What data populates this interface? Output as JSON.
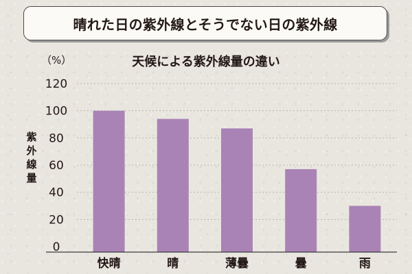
{
  "header": {
    "title": "晴れた日の紫外線とそうでない日の紫外線"
  },
  "chart_data": {
    "type": "bar",
    "title": "天候による紫外線量の違い",
    "xlabel": "",
    "ylabel": "紫外線量",
    "yunit": "（%）",
    "ylim": [
      0,
      120
    ],
    "yticks": [
      0,
      20,
      40,
      60,
      80,
      100,
      120
    ],
    "grid": true,
    "categories": [
      "快晴",
      "晴",
      "薄曇",
      "曇",
      "雨"
    ],
    "values": [
      100,
      94,
      87,
      57,
      30
    ],
    "colors": {
      "bar": "#a983b6",
      "grid": "#b7b2a8",
      "axis": "#3a3a3a",
      "text": "#231815"
    }
  }
}
